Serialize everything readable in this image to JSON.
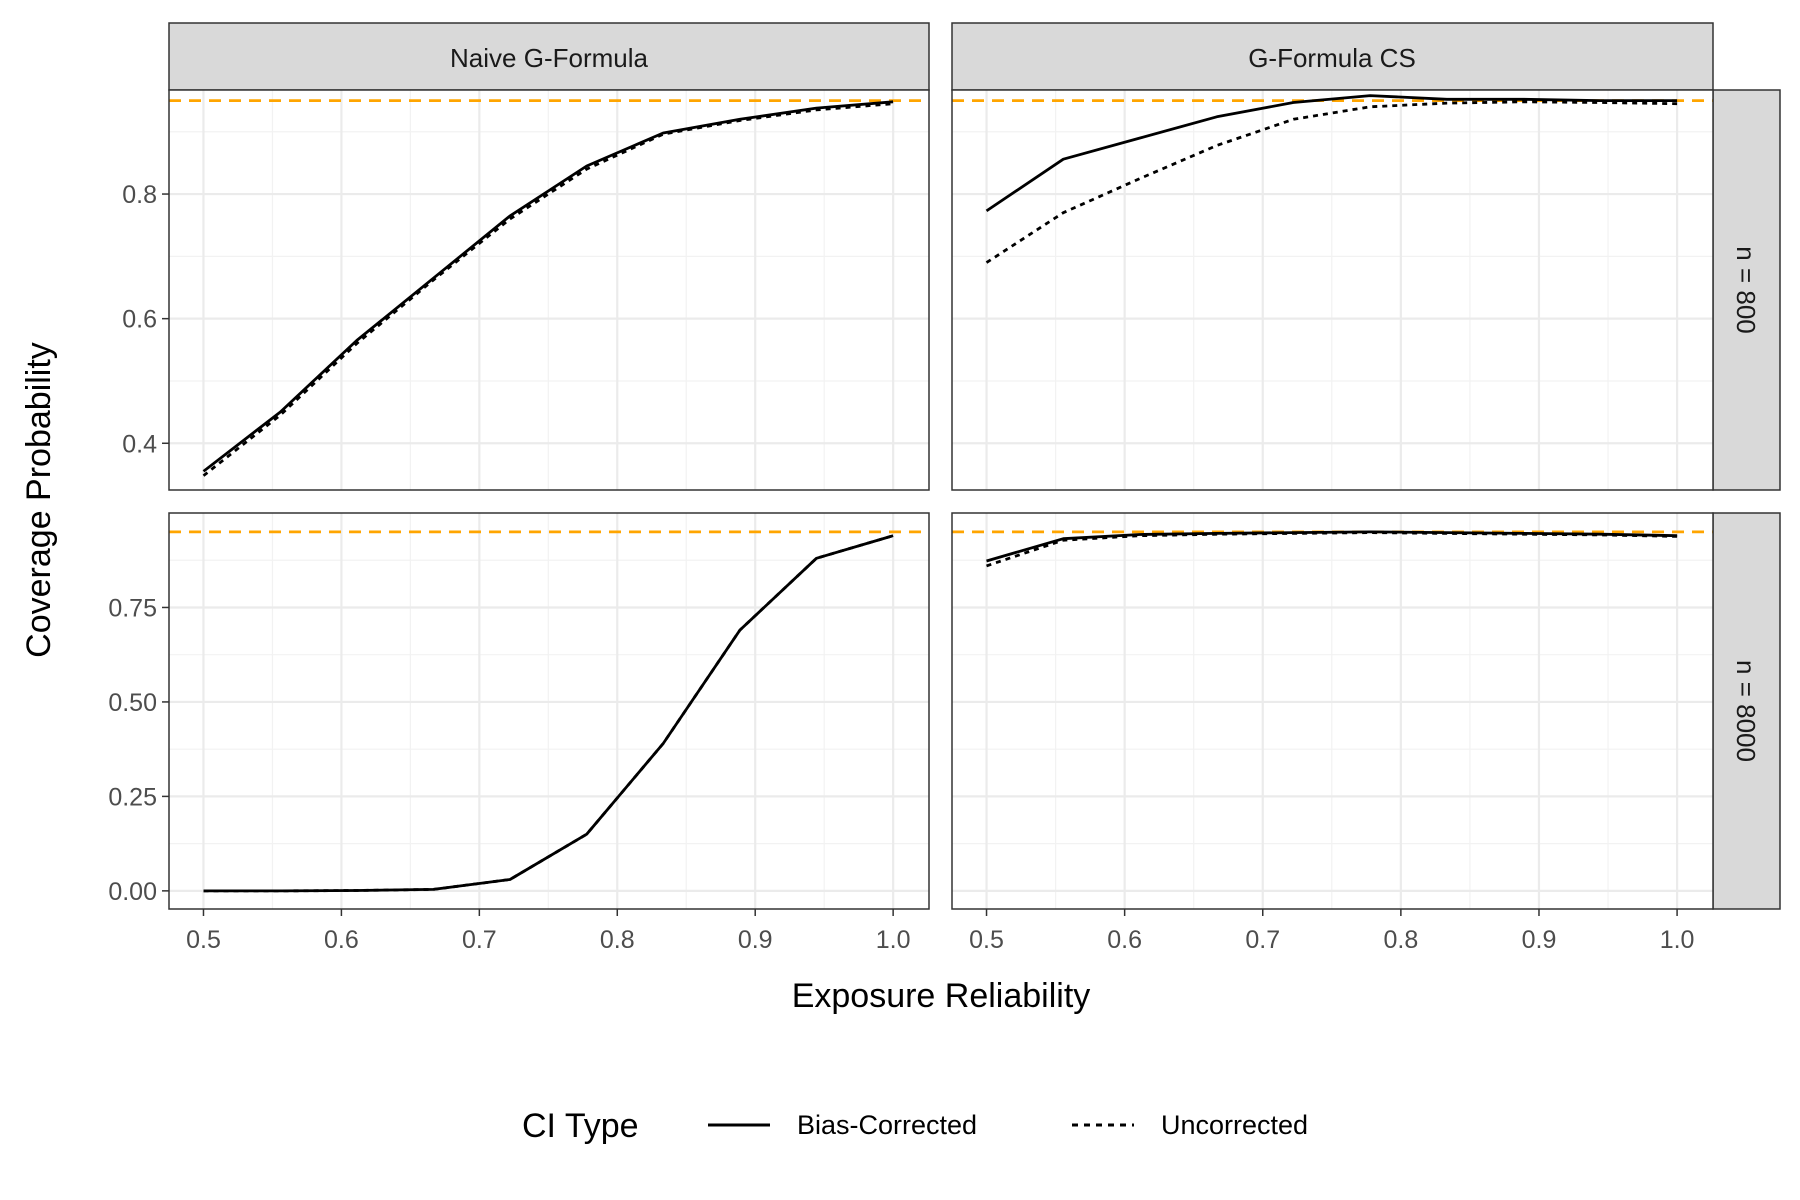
{
  "chart_data": {
    "type": "line",
    "xlabel": "Exposure Reliability",
    "ylabel": "Coverage Probability",
    "xlim": [
      0.475,
      1.026
    ],
    "x_ticks": [
      "0.5",
      "0.6",
      "0.7",
      "0.8",
      "0.9",
      "1.0"
    ],
    "x_tick_values": [
      0.5,
      0.6,
      0.7,
      0.8,
      0.9,
      1.0
    ],
    "reference_line": {
      "y": 0.95,
      "color": "#FFA500",
      "style": "dashed"
    },
    "grid": true,
    "legend": {
      "title": "CI Type",
      "position": "bottom",
      "entries": [
        {
          "label": "Bias-Corrected",
          "linestyle": "solid"
        },
        {
          "label": "Uncorrected",
          "linestyle": "dotted"
        }
      ]
    },
    "col_labels": [
      "Naive G-Formula",
      "G-Formula CS"
    ],
    "row_labels": [
      "n = 800",
      "n = 8000"
    ],
    "rows": [
      {
        "ylim": [
          0.325,
          0.967
        ],
        "y_ticks": [
          "0.4",
          "0.6",
          "0.8"
        ],
        "y_tick_values": [
          0.4,
          0.6,
          0.8
        ]
      },
      {
        "ylim": [
          -0.048,
          1.0
        ],
        "y_ticks": [
          "0.00",
          "0.25",
          "0.50",
          "0.75"
        ],
        "y_tick_values": [
          0.0,
          0.25,
          0.5,
          0.75
        ]
      }
    ],
    "x": [
      0.5,
      0.5556,
      0.6111,
      0.6667,
      0.7222,
      0.7778,
      0.8333,
      0.8889,
      0.9444,
      1.0
    ],
    "panels": [
      {
        "row": 0,
        "col": 0,
        "series": [
          {
            "name": "Bias-Corrected",
            "values": [
              0.355,
              0.45,
              0.565,
              0.665,
              0.765,
              0.845,
              0.898,
              0.92,
              0.938,
              0.948
            ]
          },
          {
            "name": "Uncorrected",
            "values": [
              0.348,
              0.445,
              0.56,
              0.662,
              0.76,
              0.84,
              0.896,
              0.918,
              0.935,
              0.945
            ]
          }
        ]
      },
      {
        "row": 0,
        "col": 1,
        "series": [
          {
            "name": "Bias-Corrected",
            "values": [
              0.773,
              0.856,
              0.89,
              0.924,
              0.947,
              0.958,
              0.952,
              0.952,
              0.95,
              0.95
            ]
          },
          {
            "name": "Uncorrected",
            "values": [
              0.69,
              0.77,
              0.825,
              0.878,
              0.92,
              0.94,
              0.946,
              0.948,
              0.947,
              0.945
            ]
          }
        ]
      },
      {
        "row": 1,
        "col": 0,
        "series": [
          {
            "name": "Bias-Corrected",
            "values": [
              0.0,
              0.0,
              0.001,
              0.004,
              0.03,
              0.15,
              0.39,
              0.69,
              0.88,
              0.94
            ]
          },
          {
            "name": "Uncorrected",
            "values": [
              0.0,
              0.0,
              0.001,
              0.004,
              0.03,
              0.15,
              0.39,
              0.69,
              0.88,
              0.94
            ]
          }
        ]
      },
      {
        "row": 1,
        "col": 1,
        "series": [
          {
            "name": "Bias-Corrected",
            "values": [
              0.873,
              0.932,
              0.943,
              0.946,
              0.948,
              0.95,
              0.948,
              0.946,
              0.944,
              0.94
            ]
          },
          {
            "name": "Uncorrected",
            "values": [
              0.86,
              0.928,
              0.94,
              0.944,
              0.946,
              0.948,
              0.946,
              0.944,
              0.942,
              0.938
            ]
          }
        ]
      }
    ]
  }
}
